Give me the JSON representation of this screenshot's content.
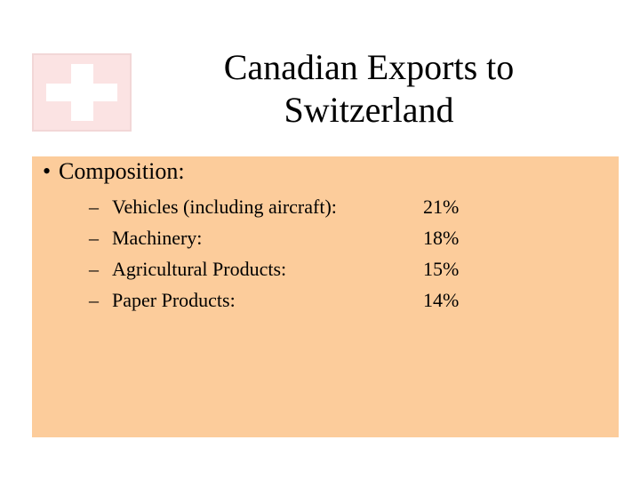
{
  "slide": {
    "title_line1": "Canadian Exports to",
    "title_line2": "Switzerland",
    "bullet": {
      "symbol": "•",
      "label": "Composition:"
    },
    "items": [
      {
        "dash": "–",
        "label": "Vehicles (including aircraft):",
        "value": "21%"
      },
      {
        "dash": "–",
        "label": "Machinery:",
        "value": "18%"
      },
      {
        "dash": "–",
        "label": "Agricultural Products:",
        "value": "15%"
      },
      {
        "dash": "–",
        "label": "Paper Products:",
        "value": "14%"
      }
    ],
    "flag_icon": "swiss-flag-icon",
    "colors": {
      "panel_background": "#fccc9b",
      "flag_background": "#fbe3e3",
      "flag_cross": "#ffffff",
      "text": "#000000"
    }
  }
}
